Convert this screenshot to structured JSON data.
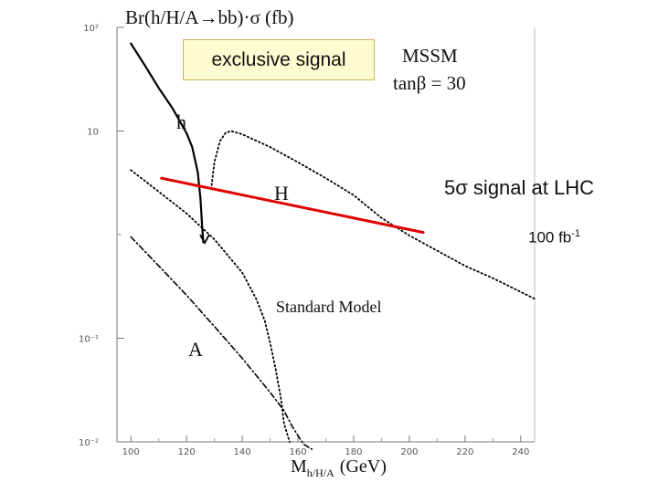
{
  "chart_data": {
    "type": "line",
    "title": "Br(h/H/A→bb)·σ  (fb)",
    "xlabel": "M",
    "xlabel_sub": "h/H/A",
    "xlabel_unit": "(GeV)",
    "ylabel": "",
    "y_scale": "log",
    "xlim": [
      95,
      245
    ],
    "ylim": [
      0.01,
      100
    ],
    "x_ticks": [
      {
        "value": 100,
        "label": "100"
      },
      {
        "value": 120,
        "label": "120"
      },
      {
        "value": 140,
        "label": "140"
      },
      {
        "value": 160,
        "label": "160"
      },
      {
        "value": 180,
        "label": "180"
      },
      {
        "value": 200,
        "label": "200"
      },
      {
        "value": 220,
        "label": "220"
      },
      {
        "value": 240,
        "label": "240"
      }
    ],
    "y_ticks": [
      {
        "value": 100,
        "label": "10²"
      },
      {
        "value": 10,
        "label": "10"
      },
      {
        "value": 0.1,
        "label": "10⁻¹"
      },
      {
        "value": 0.01,
        "label": "10⁻²"
      }
    ],
    "series": [
      {
        "name": "h",
        "style": "solid",
        "color": "#000000",
        "x": [
          100,
          105,
          110,
          115,
          120,
          122,
          124,
          125,
          125.6,
          126,
          126.5
        ],
        "y": [
          70,
          43,
          26,
          16.5,
          9.5,
          7,
          4,
          2.2,
          1.2,
          0.85,
          0.85
        ]
      },
      {
        "name": "H",
        "style": "dotted",
        "color": "#000000",
        "x": [
          129,
          130,
          132,
          134,
          136,
          140,
          150,
          160,
          170,
          180,
          190,
          200,
          210,
          220,
          230,
          240,
          245
        ],
        "y": [
          3,
          5,
          8,
          9.6,
          10,
          9.3,
          7,
          5,
          3.5,
          2.4,
          1.45,
          0.98,
          0.7,
          0.5,
          0.38,
          0.28,
          0.24
        ]
      },
      {
        "name": "A",
        "style": "dash-dot",
        "color": "#000000",
        "x": [
          100,
          110,
          120,
          130,
          140,
          150,
          155,
          158,
          162,
          165
        ],
        "y": [
          0.95,
          0.5,
          0.26,
          0.13,
          0.064,
          0.03,
          0.02,
          0.014,
          0.0095,
          0.0085
        ]
      },
      {
        "name": "Standard Model",
        "style": "dotted",
        "color": "#000000",
        "x": [
          100,
          110,
          120,
          130,
          140,
          145,
          148,
          150,
          152,
          154,
          155,
          157
        ],
        "y": [
          4.2,
          2.6,
          1.6,
          0.9,
          0.43,
          0.24,
          0.15,
          0.09,
          0.05,
          0.025,
          0.015,
          0.01
        ]
      },
      {
        "name": "5σ signal at LHC 100 fb⁻¹",
        "style": "solid",
        "color": "#e00000",
        "x": [
          111,
          205
        ],
        "y": [
          3.5,
          1.05
        ]
      }
    ],
    "annotations": {
      "h_label": "h",
      "H_label": "H",
      "A_label": "A",
      "sm_label": "Standard Model",
      "mssm": "MSSM",
      "tanb": "tanβ = 30"
    }
  },
  "overlay": {
    "exclusive": "exclusive signal",
    "signal_main": "5σ signal at LHC",
    "lumi_main": "100 fb",
    "lumi_sup": "-1"
  }
}
